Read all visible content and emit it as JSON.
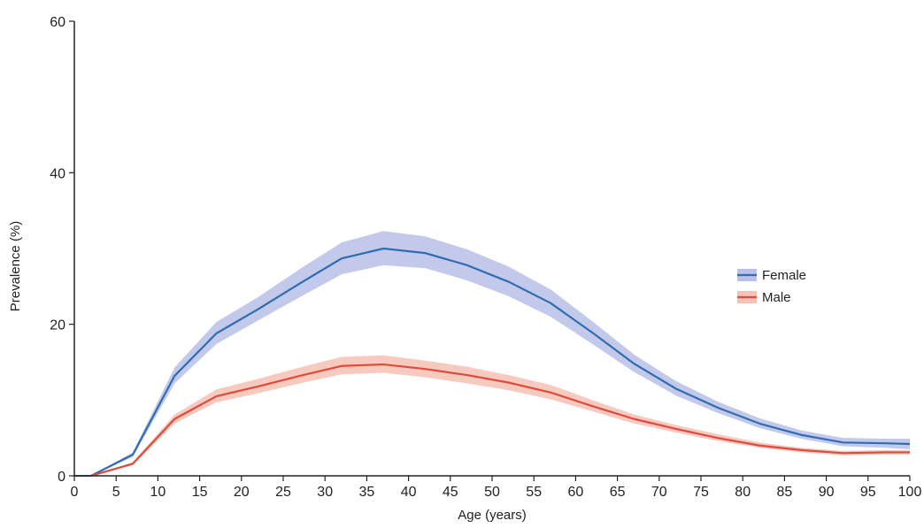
{
  "chart_data": {
    "type": "line",
    "title": "",
    "xlabel": "Age (years)",
    "ylabel": "Prevalence (%)",
    "xlim": [
      0,
      100
    ],
    "ylim": [
      0,
      60
    ],
    "x_ticks": [
      "0",
      "5",
      "10",
      "15",
      "20",
      "25",
      "30",
      "35",
      "40",
      "45",
      "50",
      "55",
      "60",
      "65",
      "70",
      "75",
      "80",
      "85",
      "90",
      "95",
      "100"
    ],
    "y_ticks": [
      "0",
      "20",
      "40",
      "60"
    ],
    "grid": false,
    "legend_position": "right",
    "x": [
      2,
      7,
      12,
      17,
      22,
      27,
      32,
      37,
      42,
      47,
      52,
      57,
      62,
      67,
      72,
      77,
      82,
      87,
      92,
      97,
      100
    ],
    "series": [
      {
        "name": "Female",
        "color": "#2f6db0",
        "band_color": "#b9bfe8",
        "values": [
          0.0,
          2.8,
          13.2,
          18.8,
          22.0,
          25.4,
          28.7,
          30.0,
          29.4,
          27.8,
          25.6,
          22.8,
          18.9,
          14.8,
          11.5,
          9.0,
          6.9,
          5.4,
          4.4,
          4.3,
          4.2
        ],
        "lower": [
          0.0,
          2.5,
          12.2,
          17.4,
          20.5,
          23.6,
          26.6,
          27.8,
          27.4,
          25.8,
          23.7,
          21.0,
          17.4,
          13.7,
          10.6,
          8.3,
          6.3,
          4.9,
          3.9,
          3.7,
          3.5
        ],
        "upper": [
          0.0,
          3.1,
          14.3,
          20.3,
          23.6,
          27.3,
          30.8,
          32.3,
          31.6,
          29.9,
          27.6,
          24.6,
          20.4,
          16.0,
          12.5,
          9.8,
          7.6,
          6.0,
          5.0,
          4.9,
          4.9
        ]
      },
      {
        "name": "Male",
        "color": "#e04a3a",
        "band_color": "#f6c1b5",
        "values": [
          0.0,
          1.6,
          7.5,
          10.5,
          11.8,
          13.2,
          14.5,
          14.7,
          14.1,
          13.3,
          12.3,
          11.0,
          9.2,
          7.5,
          6.2,
          5.0,
          4.0,
          3.4,
          3.0,
          3.1,
          3.1
        ],
        "lower": [
          0.0,
          1.4,
          6.9,
          9.7,
          10.9,
          12.2,
          13.4,
          13.6,
          13.0,
          12.2,
          11.3,
          10.1,
          8.5,
          6.9,
          5.7,
          4.6,
          3.7,
          3.1,
          2.7,
          2.8,
          2.8
        ],
        "upper": [
          0.0,
          1.8,
          8.1,
          11.4,
          12.8,
          14.3,
          15.7,
          15.9,
          15.2,
          14.4,
          13.3,
          12.0,
          10.0,
          8.1,
          6.7,
          5.5,
          4.4,
          3.7,
          3.3,
          3.4,
          3.4
        ]
      }
    ]
  }
}
